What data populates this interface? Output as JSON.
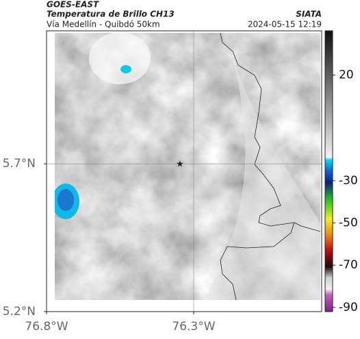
{
  "header": {
    "satellite": "GOES-EAST",
    "title": "Temperatura de Brillo CH13",
    "subtitle": "Vía Medellín - Quibdó 50km",
    "source": "SIATA",
    "datetime": "2024-05-15 12:19"
  },
  "map": {
    "lat_range": [
      5.2,
      6.15
    ],
    "lon_range": [
      -76.8,
      -75.865
    ],
    "lat_ticks": [
      {
        "value": 5.2,
        "label": "5.2°N"
      },
      {
        "value": 5.7,
        "label": "5.7°N"
      }
    ],
    "lon_ticks": [
      {
        "value": -76.8,
        "label": "76.8°W"
      },
      {
        "value": -76.3,
        "label": "76.3°W"
      }
    ]
  },
  "colorbar": {
    "range": [
      41,
      -92
    ],
    "ticks": [
      20,
      -30,
      -50,
      -70,
      -90
    ]
  }
}
